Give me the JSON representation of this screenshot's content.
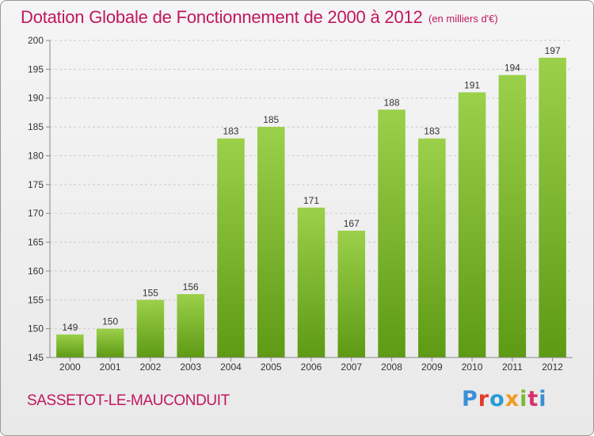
{
  "title": "Dotation Globale de Fonctionnement de 2000 à 2012",
  "unit_note": "(en milliers d'€)",
  "city": "SASSETOT-LE-MAUCONDUIT",
  "logo": {
    "text": "Proxiti",
    "letters": [
      "P",
      "r",
      "o",
      "x",
      "i",
      "t",
      "i"
    ]
  },
  "colors": {
    "title": "#c0175d",
    "bar_top": "#9bd04a",
    "bar_bottom": "#5e9a14",
    "grid": "#cccccc"
  },
  "chart_data": {
    "type": "bar",
    "categories": [
      "2000",
      "2001",
      "2002",
      "2003",
      "2004",
      "2005",
      "2006",
      "2007",
      "2008",
      "2009",
      "2010",
      "2011",
      "2012"
    ],
    "values": [
      149,
      150,
      155,
      156,
      183,
      185,
      171,
      167,
      188,
      183,
      191,
      194,
      197
    ],
    "ylim": [
      145,
      200
    ],
    "yticks": [
      145,
      150,
      155,
      160,
      165,
      170,
      175,
      180,
      185,
      190,
      195,
      200
    ],
    "grid": true,
    "title": "Dotation Globale de Fonctionnement de 2000 à 2012",
    "ylabel": "",
    "xlabel": ""
  }
}
